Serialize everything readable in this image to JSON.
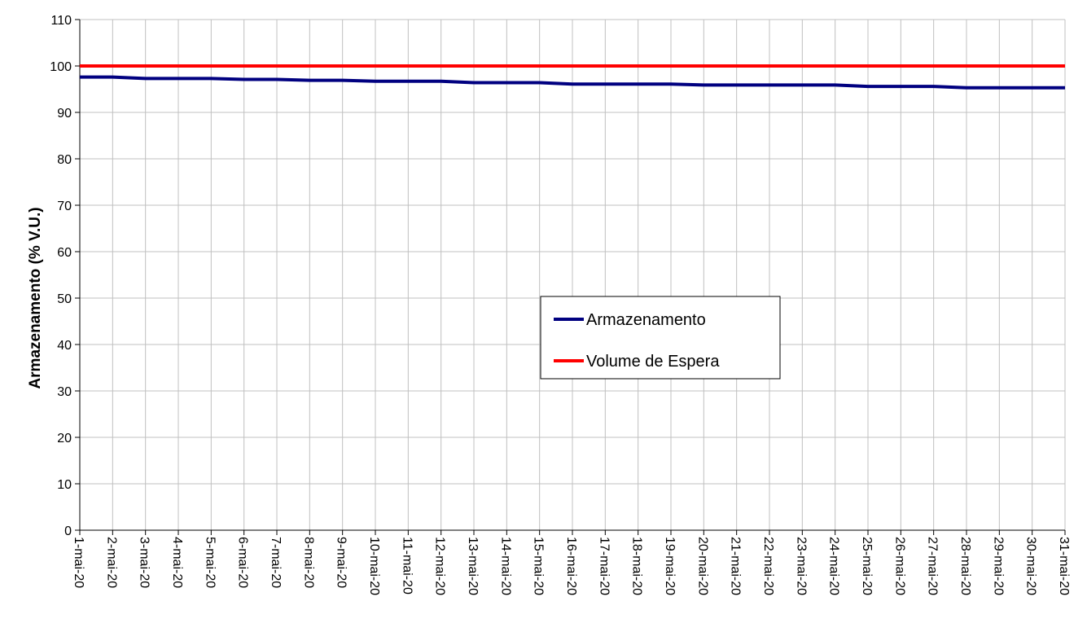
{
  "chart_data": {
    "type": "line",
    "title": "",
    "xlabel": "",
    "ylabel": "Armazenamento (% V.U.)",
    "ylim": [
      0,
      110
    ],
    "yticks": [
      0,
      10,
      20,
      30,
      40,
      50,
      60,
      70,
      80,
      90,
      100,
      110
    ],
    "grid": true,
    "legend_position": "center-right",
    "categories": [
      "1-mai-20",
      "2-mai-20",
      "3-mai-20",
      "4-mai-20",
      "5-mai-20",
      "6-mai-20",
      "7-mai-20",
      "8-mai-20",
      "9-mai-20",
      "10-mai-20",
      "11-mai-20",
      "12-mai-20",
      "13-mai-20",
      "14-mai-20",
      "15-mai-20",
      "16-mai-20",
      "17-mai-20",
      "18-mai-20",
      "19-mai-20",
      "20-mai-20",
      "21-mai-20",
      "22-mai-20",
      "23-mai-20",
      "24-mai-20",
      "25-mai-20",
      "26-mai-20",
      "27-mai-20",
      "28-mai-20",
      "29-mai-20",
      "30-mai-20",
      "31-mai-20"
    ],
    "series": [
      {
        "name": "Armazenamento",
        "color": "#000080",
        "values": [
          97.6,
          97.6,
          97.3,
          97.3,
          97.3,
          97.1,
          97.1,
          96.9,
          96.9,
          96.7,
          96.7,
          96.7,
          96.4,
          96.4,
          96.4,
          96.1,
          96.1,
          96.1,
          96.1,
          95.9,
          95.9,
          95.9,
          95.9,
          95.9,
          95.6,
          95.6,
          95.6,
          95.3,
          95.3,
          95.3,
          95.3
        ]
      },
      {
        "name": "Volume de Espera",
        "color": "#ff0000",
        "values": [
          100,
          100,
          100,
          100,
          100,
          100,
          100,
          100,
          100,
          100,
          100,
          100,
          100,
          100,
          100,
          100,
          100,
          100,
          100,
          100,
          100,
          100,
          100,
          100,
          100,
          100,
          100,
          100,
          100,
          100,
          100
        ]
      }
    ]
  }
}
